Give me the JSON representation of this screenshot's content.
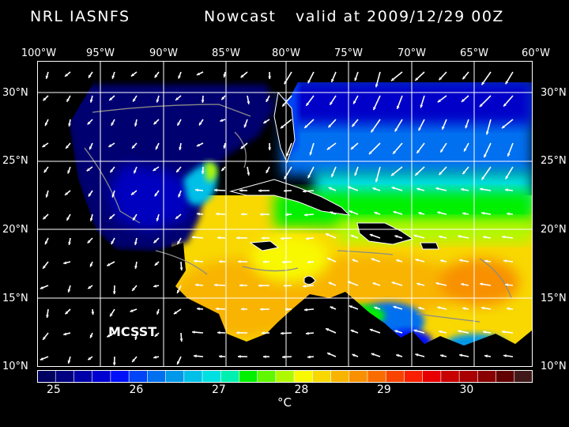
{
  "header": {
    "source": "NRL IASNFS",
    "product": "Nowcast",
    "valid": "valid at 2009/12/29 00Z"
  },
  "axes": {
    "lon_labels": [
      "100°W",
      "95°W",
      "90°W",
      "85°W",
      "80°W",
      "75°W",
      "70°W",
      "65°W",
      "60°W"
    ],
    "lat_labels": [
      "30°N",
      "25°N",
      "20°N",
      "15°N",
      "10°N"
    ],
    "lon_range": [
      -100,
      -60
    ],
    "lat_range": [
      10,
      32
    ]
  },
  "map": {
    "field": "sea surface temperature with surface current vectors",
    "overlay_label": "MCSST",
    "land_color": "#000000",
    "grid_color": "#ffffff",
    "coast_color": "#ffffff",
    "isobath_color": "#8a8a8a"
  },
  "colorbar": {
    "unit": "°C",
    "labels": [
      "25",
      "26",
      "27",
      "28",
      "29",
      "30"
    ],
    "min": 24.8,
    "max": 30.8,
    "colors": [
      "#000060",
      "#000080",
      "#0000a8",
      "#0000d0",
      "#0010f8",
      "#0044f8",
      "#0070f0",
      "#0098e8",
      "#00c0e8",
      "#00e0e0",
      "#00f0b0",
      "#00f000",
      "#60f800",
      "#b0f800",
      "#f8f800",
      "#f8d800",
      "#f8b400",
      "#f89000",
      "#f86c00",
      "#f84400",
      "#f82000",
      "#e80000",
      "#c80000",
      "#a80000",
      "#880000",
      "#600000",
      "#401818"
    ]
  }
}
